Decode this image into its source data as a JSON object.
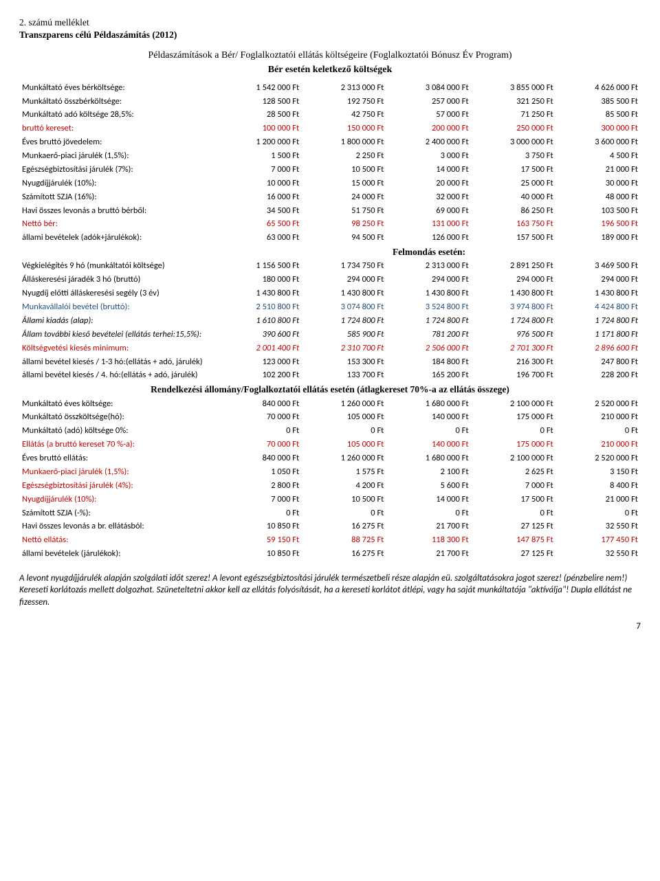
{
  "header": {
    "line1": "2. számú melléklet",
    "line2": "Transzparens célú Példaszámítás (2012)",
    "calc_title": "Példaszámítások a Bér/ Foglalkoztatói ellátás költségeire (Foglalkoztatói Bónusz Év Program)",
    "calc_subtitle": "Bér esetén keletkező költségek"
  },
  "rows_top": [
    {
      "label": "Munkáltató éves bérköltsége:",
      "vals": [
        "1 542 000 Ft",
        "2 313 000 Ft",
        "3 084 000 Ft",
        "3 855 000 Ft",
        "4 626 000 Ft"
      ]
    },
    {
      "label": "Munkáltató összbérköltsége:",
      "vals": [
        "128 500 Ft",
        "192 750 Ft",
        "257 000 Ft",
        "321 250 Ft",
        "385 500 Ft"
      ]
    },
    {
      "label": "Munkáltató adó költsége 28,5%:",
      "vals": [
        "28 500 Ft",
        "42 750 Ft",
        "57 000 Ft",
        "71 250 Ft",
        "85 500 Ft"
      ]
    },
    {
      "label": "bruttó kereset:",
      "labelClass": "red",
      "valClass": "red",
      "vals": [
        "100 000 Ft",
        "150 000 Ft",
        "200 000 Ft",
        "250 000 Ft",
        "300 000 Ft"
      ]
    },
    {
      "label": "Éves bruttó jövedelem:",
      "vals": [
        "1 200 000 Ft",
        "1 800 000 Ft",
        "2 400 000 Ft",
        "3 000 000 Ft",
        "3 600 000 Ft"
      ]
    },
    {
      "label": "Munkaerő-piaci járulék (1,5%):",
      "vals": [
        "1 500 Ft",
        "2 250 Ft",
        "3 000 Ft",
        "3 750 Ft",
        "4 500 Ft"
      ]
    },
    {
      "label": "Egészségbiztosítási járulék (7%):",
      "vals": [
        "7 000 Ft",
        "10 500 Ft",
        "14 000 Ft",
        "17 500 Ft",
        "21 000 Ft"
      ]
    },
    {
      "label": "Nyugdíjjárulék (10%):",
      "vals": [
        "10 000 Ft",
        "15 000 Ft",
        "20 000 Ft",
        "25 000 Ft",
        "30 000 Ft"
      ]
    },
    {
      "label": "Számított SZJA (16%):",
      "vals": [
        "16 000 Ft",
        "24 000 Ft",
        "32 000 Ft",
        "40 000 Ft",
        "48 000 Ft"
      ]
    },
    {
      "label": "Havi összes levonás a bruttó bérből:",
      "vals": [
        "34 500 Ft",
        "51 750 Ft",
        "69 000 Ft",
        "86 250 Ft",
        "103 500 Ft"
      ]
    },
    {
      "label": "Nettó bér:",
      "labelClass": "red",
      "valClass": "red",
      "vals": [
        "65 500 Ft",
        "98 250 Ft",
        "131 000 Ft",
        "163 750 Ft",
        "196 500 Ft"
      ]
    },
    {
      "label": "állami bevételek (adók+járulékok):",
      "vals": [
        "63 000 Ft",
        "94 500 Ft",
        "126 000 Ft",
        "157 500 Ft",
        "189 000 Ft"
      ]
    }
  ],
  "felmondas_header": "Felmondás esetén:",
  "rows_felmondas": [
    {
      "label": "Végkielégítés 9 hó (munkáltatói költsége)",
      "vals": [
        "1 156 500 Ft",
        "1 734 750 Ft",
        "2 313 000 Ft",
        "2 891 250 Ft",
        "3 469 500 Ft"
      ]
    },
    {
      "label": "Álláskeresési járadék 3 hó (bruttó)",
      "vals": [
        "180 000 Ft",
        "294 000 Ft",
        "294 000 Ft",
        "294 000 Ft",
        "294 000 Ft"
      ]
    },
    {
      "label": "Nyugdíj előtti álláskeresési segély (3 év)",
      "vals": [
        "1 430 800 Ft",
        "1 430 800 Ft",
        "1 430 800 Ft",
        "1 430 800 Ft",
        "1 430 800 Ft"
      ]
    },
    {
      "label": "Munkavállalói bevétel (bruttó):",
      "labelClass": "blue",
      "valClass": "blue",
      "vals": [
        "2 510 800 Ft",
        "3 074 800 Ft",
        "3 524 800 Ft",
        "3 974 800 Ft",
        "4 424 800 Ft"
      ]
    },
    {
      "label": "Állami kiadás (alap):",
      "labelClass": "italic",
      "valClass": "italic",
      "vals": [
        "1 610 800 Ft",
        "1 724 800 Ft",
        "1 724 800 Ft",
        "1 724 800 Ft",
        "1 724 800 Ft"
      ]
    },
    {
      "label": "Állam további kieső bevételei (ellátás terhei:15,5%):",
      "labelClass": "italic",
      "valClass": "italic",
      "vals": [
        "390 600 Ft",
        "585 900 Ft",
        "781 200 Ft",
        "976 500 Ft",
        "1 171 800 Ft"
      ]
    },
    {
      "label": "Költségvetési kiesés minimum:",
      "labelClass": "red",
      "valClass": "red italic",
      "vals": [
        "2 001 400 Ft",
        "2 310 700 Ft",
        "2 506 000 Ft",
        "2 701 300 Ft",
        "2 896 600 Ft"
      ]
    },
    {
      "label": "állami bevétel kiesés / 1-3 hó:(ellátás + adó, járulék)",
      "vals": [
        "123 000 Ft",
        "153 300 Ft",
        "184 800 Ft",
        "216 300 Ft",
        "247 800 Ft"
      ]
    },
    {
      "label": "állami bevétel kiesés / 4. hó:(ellátás + adó, járulék)",
      "vals": [
        "102 200 Ft",
        "133 700 Ft",
        "165 200 Ft",
        "196 700 Ft",
        "228 200 Ft"
      ]
    }
  ],
  "rendel_header": "Rendelkezési állomány/Foglalkoztatói ellátás esetén (átlagkereset 70%-a az ellátás összege)",
  "rows_rendel": [
    {
      "label": "Munkáltató éves költsége:",
      "vals": [
        "840 000 Ft",
        "1 260 000 Ft",
        "1 680 000 Ft",
        "2 100 000 Ft",
        "2 520 000 Ft"
      ]
    },
    {
      "label": "Munkáltató összköltsége(hó):",
      "vals": [
        "70 000 Ft",
        "105 000 Ft",
        "140 000 Ft",
        "175 000 Ft",
        "210 000 Ft"
      ]
    },
    {
      "label": "Munkáltató (adó) költsége 0%:",
      "vals": [
        "0 Ft",
        "0 Ft",
        "0 Ft",
        "0 Ft",
        "0 Ft"
      ]
    },
    {
      "label": "Ellátás (a bruttó kereset 70 %-a):",
      "labelClass": "red",
      "valClass": "red",
      "vals": [
        "70 000 Ft",
        "105 000 Ft",
        "140 000 Ft",
        "175 000 Ft",
        "210 000 Ft"
      ]
    },
    {
      "label": "Éves bruttó ellátás:",
      "vals": [
        "840 000 Ft",
        "1 260 000 Ft",
        "1 680 000 Ft",
        "2 100 000 Ft",
        "2 520 000 Ft"
      ]
    },
    {
      "label": "Munkaerő-piaci járulék (1,5%):",
      "labelClass": "red",
      "vals": [
        "1 050 Ft",
        "1 575 Ft",
        "2 100 Ft",
        "2 625 Ft",
        "3 150 Ft"
      ]
    },
    {
      "label": "Egészségbiztosítási járulék (4%):",
      "labelClass": "red",
      "vals": [
        "2 800 Ft",
        "4 200 Ft",
        "5 600 Ft",
        "7 000 Ft",
        "8 400 Ft"
      ]
    },
    {
      "label": "Nyugdíjjárulék (10%):",
      "labelClass": "red",
      "vals": [
        "7 000 Ft",
        "10 500 Ft",
        "14 000 Ft",
        "17 500 Ft",
        "21 000 Ft"
      ]
    },
    {
      "label": "Számított SZJA (-%):",
      "vals": [
        "0 Ft",
        "0 Ft",
        "0 Ft",
        "0 Ft",
        "0 Ft"
      ]
    },
    {
      "label": "Havi összes levonás a br. ellátásból:",
      "vals": [
        "10 850 Ft",
        "16 275 Ft",
        "21 700 Ft",
        "27 125 Ft",
        "32 550 Ft"
      ]
    },
    {
      "label": "Nettó ellátás:",
      "labelClass": "red",
      "valClass": "red",
      "vals": [
        "59 150 Ft",
        "88 725 Ft",
        "118 300 Ft",
        "147 875 Ft",
        "177 450 Ft"
      ]
    },
    {
      "label": "állami bevételek (járulékok):",
      "vals": [
        "10 850 Ft",
        "16 275 Ft",
        "21 700 Ft",
        "27 125 Ft",
        "32 550 Ft"
      ]
    }
  ],
  "footer": {
    "para": "A levont nyugdíjjárulék alapján szolgálati időt szerez! A levont egészségbiztosítási járulék természetbeli része alapján eü. szolgáltatásokra jogot szerez! (pénzbelire nem!) Kereseti korlátozás mellett dolgozhat. Szüneteltetni akkor kell az ellátás folyósítását, ha a kereseti korlátot átlépi, vagy ha saját munkáltatója \"aktíválja\"! Dupla ellátást ne fizessen.",
    "page": "7"
  }
}
